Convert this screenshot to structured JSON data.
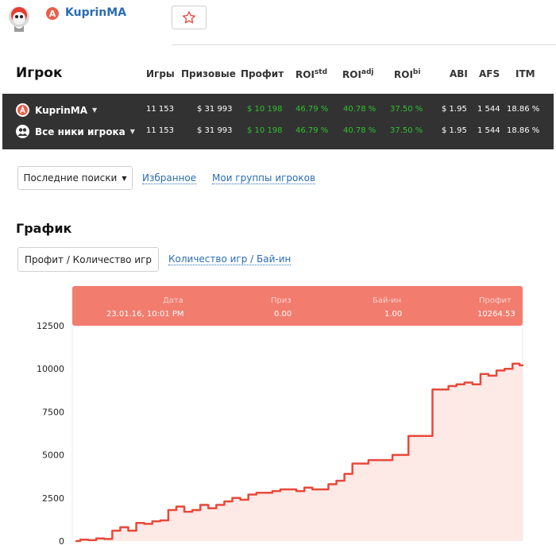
{
  "header": {
    "player_badge": "A",
    "player_name": "KuprinMA",
    "favorite_icon": "star-outline-icon"
  },
  "stats": {
    "headers": {
      "player": "Игрок",
      "games": "Игры",
      "prizes": "Призовые",
      "profit": "Профит",
      "roi_std": "ROI",
      "roi_std_sup": "std",
      "roi_adj": "ROI",
      "roi_adj_sup": "adj",
      "roi_bi": "ROI",
      "roi_bi_sup": "bi",
      "abi": "ABI",
      "afs": "AFS",
      "itm": "ITM"
    },
    "rows": [
      {
        "label": "KuprinMA",
        "icon": "player-a-icon",
        "games": "11 153",
        "prizes": "$ 31 993",
        "profit": "$ 10 198",
        "roi_std": "46.79 %",
        "roi_adj": "40.78 %",
        "roi_bi": "37.50 %",
        "abi": "$ 1.95",
        "afs": "1 544",
        "itm": "18.86 %"
      },
      {
        "label": "Все ники игрока",
        "icon": "group-icon",
        "games": "11 153",
        "prizes": "$ 31 993",
        "profit": "$ 10 198",
        "roi_std": "46.79 %",
        "roi_adj": "40.78 %",
        "roi_bi": "37.50 %",
        "abi": "$ 1.95",
        "afs": "1 544",
        "itm": "18.86 %"
      }
    ]
  },
  "nav": {
    "recent_searches": "Последние поиски",
    "favorites": "Избранное",
    "my_groups": "Мои группы игроков"
  },
  "graph": {
    "title": "График",
    "tab_active": "Профит / Количество игр",
    "tab_other": "Количество игр / Бай-ин"
  },
  "tooltip": {
    "date_label": "Дата",
    "date_value": "23.01.16, 10:01 PM",
    "prize_label": "Приз",
    "prize_value": "0.00",
    "buyin_label": "Бай-ин",
    "buyin_value": "1.00",
    "profit_label": "Профит",
    "profit_value": "10264.53"
  },
  "chart_data": {
    "type": "area",
    "ylim": [
      0,
      12500
    ],
    "yticks": [
      0,
      2500,
      5000,
      7500,
      10000,
      12500
    ],
    "ytick_labels": [
      "0",
      "2500",
      "5000",
      "7500",
      "10000",
      "12500"
    ],
    "line_color": "#e8493a",
    "fill_color": "#fde9e6",
    "series": [
      {
        "x": [
          0,
          200,
          400,
          600,
          800,
          1000,
          1200,
          1400,
          1600,
          1800,
          2000,
          2200,
          2400,
          2600,
          2800,
          3000,
          3200,
          3400,
          3600,
          3800,
          4000,
          4200,
          4400,
          4600,
          4800,
          5000,
          5200,
          5400,
          5600,
          5800,
          6000,
          6200,
          6400,
          6600,
          6800,
          7000,
          7200,
          7400,
          7600,
          7800,
          8000,
          8200,
          8400,
          8600,
          8800,
          9000,
          9200,
          9400,
          9600,
          9800,
          10000,
          10200,
          10400,
          10600,
          10800,
          11000,
          11153
        ],
        "y": [
          0,
          80,
          50,
          150,
          120,
          600,
          800,
          600,
          1050,
          1000,
          1150,
          1200,
          1800,
          2000,
          1700,
          1800,
          2100,
          1900,
          2100,
          2300,
          2500,
          2400,
          2700,
          2800,
          2800,
          2900,
          3000,
          3000,
          2900,
          3100,
          3000,
          3000,
          3300,
          3500,
          3900,
          4500,
          4500,
          4700,
          4700,
          4700,
          5000,
          5000,
          6100,
          6100,
          6100,
          8800,
          8800,
          9000,
          9100,
          9200,
          9100,
          9700,
          9600,
          9900,
          10000,
          10300,
          10200
        ]
      }
    ]
  }
}
